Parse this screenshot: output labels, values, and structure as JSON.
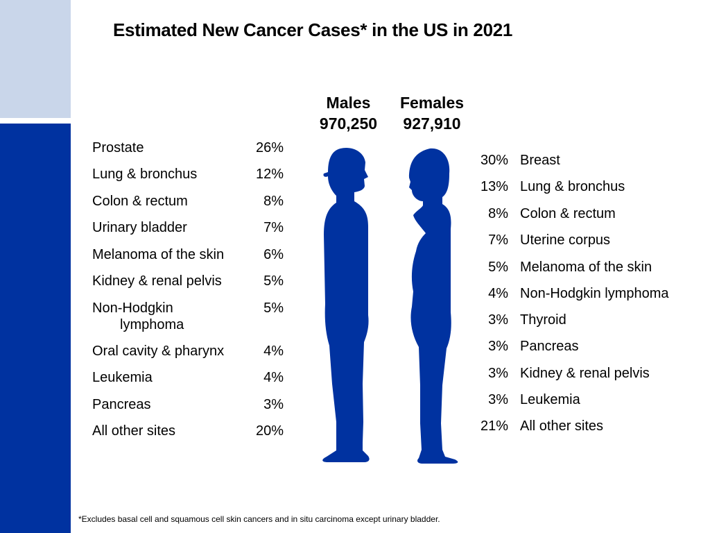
{
  "title": "Estimated New Cancer Cases* in the US in 2021",
  "males": {
    "label": "Males",
    "total": "970,250",
    "items": [
      {
        "label": "Prostate",
        "pct": "26%"
      },
      {
        "label": "Lung & bronchus",
        "pct": "12%"
      },
      {
        "label": "Colon & rectum",
        "pct": "8%"
      },
      {
        "label": "Urinary bladder",
        "pct": "7%"
      },
      {
        "label": "Melanoma of the skin",
        "pct": "6%"
      },
      {
        "label": "Kidney & renal pelvis",
        "pct": "5%"
      },
      {
        "label": "Non-Hodgkin",
        "label_cont": "lymphoma",
        "pct": "5%"
      },
      {
        "label": "Oral cavity & pharynx",
        "pct": "4%"
      },
      {
        "label": "Leukemia",
        "pct": "4%"
      },
      {
        "label": "Pancreas",
        "pct": "3%"
      },
      {
        "label": "All other sites",
        "pct": "20%"
      }
    ]
  },
  "females": {
    "label": "Females",
    "total": "927,910",
    "items": [
      {
        "label": "Breast",
        "pct": "30%"
      },
      {
        "label": "Lung & bronchus",
        "pct": "13%"
      },
      {
        "label": "Colon & rectum",
        "pct": "8%"
      },
      {
        "label": "Uterine corpus",
        "pct": "7%"
      },
      {
        "label": "Melanoma of the skin",
        "pct": "5%"
      },
      {
        "label": "Non-Hodgkin lymphoma",
        "pct": "4%"
      },
      {
        "label": "Thyroid",
        "pct": "3%"
      },
      {
        "label": "Pancreas",
        "pct": "3%"
      },
      {
        "label": "Kidney & renal pelvis",
        "pct": "3%"
      },
      {
        "label": "Leukemia",
        "pct": "3%"
      },
      {
        "label": "All other sites",
        "pct": "21%"
      }
    ]
  },
  "footnote": "*Excludes basal cell and squamous cell skin cancers and in situ carcinoma except urinary bladder.",
  "colors": {
    "figure": "#0032a0",
    "sidebar_dark": "#0032a0",
    "sidebar_light": "#c9d6ea"
  },
  "chart_data": {
    "type": "table",
    "title": "Estimated New Cancer Cases* in the US in 2021",
    "series": [
      {
        "name": "Males",
        "total": 970250,
        "categories": [
          "Prostate",
          "Lung & bronchus",
          "Colon & rectum",
          "Urinary bladder",
          "Melanoma of the skin",
          "Kidney & renal pelvis",
          "Non-Hodgkin lymphoma",
          "Oral cavity & pharynx",
          "Leukemia",
          "Pancreas",
          "All other sites"
        ],
        "values": [
          26,
          12,
          8,
          7,
          6,
          5,
          5,
          4,
          4,
          3,
          20
        ]
      },
      {
        "name": "Females",
        "total": 927910,
        "categories": [
          "Breast",
          "Lung & bronchus",
          "Colon & rectum",
          "Uterine corpus",
          "Melanoma of the skin",
          "Non-Hodgkin lymphoma",
          "Thyroid",
          "Pancreas",
          "Kidney & renal pelvis",
          "Leukemia",
          "All other sites"
        ],
        "values": [
          30,
          13,
          8,
          7,
          5,
          4,
          3,
          3,
          3,
          3,
          21
        ]
      }
    ]
  }
}
